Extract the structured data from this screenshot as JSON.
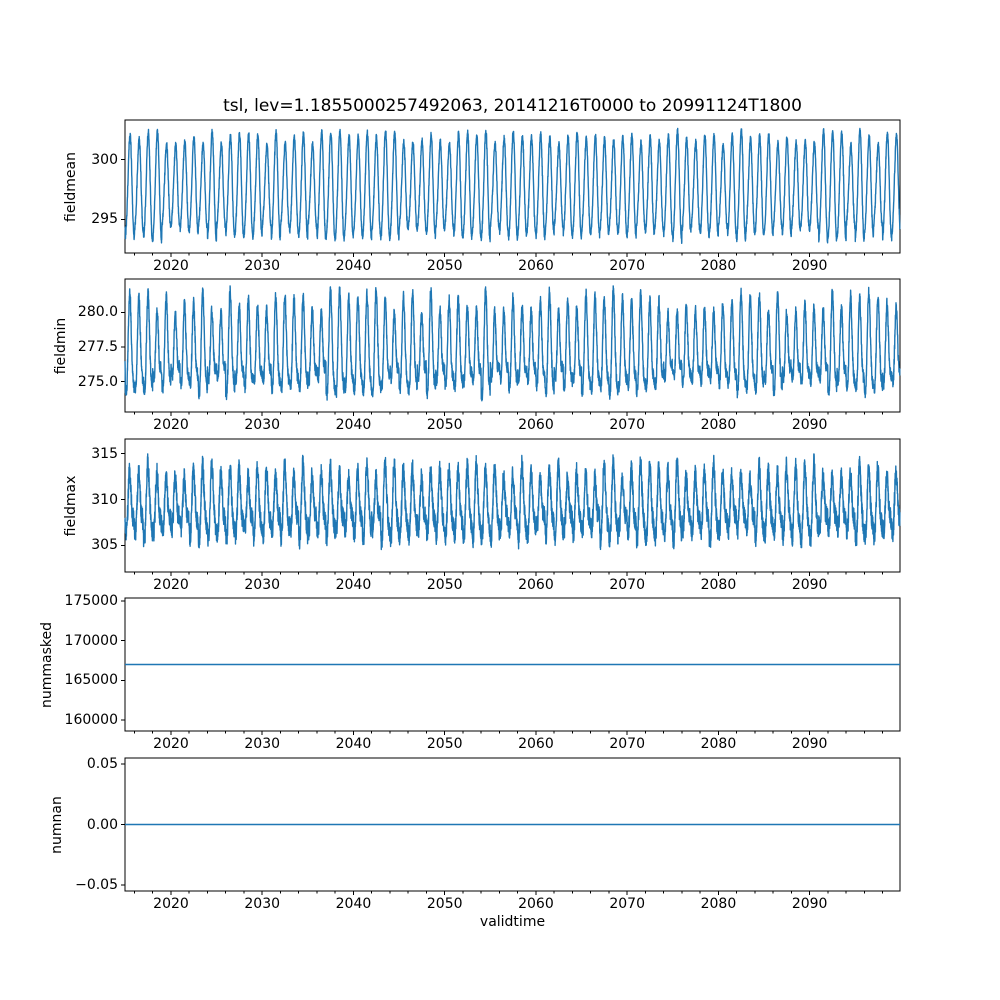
{
  "figure": {
    "title": "tsl, lev=1.1855000257492063, 20141216T0000 to 20991124T1800",
    "background": "#ffffff",
    "axis_color": "#000000",
    "line_color": "#1f77b4"
  },
  "chart_data": {
    "type": "line",
    "title": "tsl, lev=1.1855000257492063, 20141216T0000 to 20991124T1800",
    "x_axis": {
      "label": "validtime",
      "xlim": [
        2014.96,
        2099.9
      ],
      "major_ticks": [
        2020,
        2030,
        2040,
        2050,
        2060,
        2070,
        2080,
        2090
      ],
      "minor_tick_step": 2,
      "time_range_start": "20141216T0000",
      "time_range_end": "20991124T1800"
    },
    "grid": false,
    "legend": null,
    "panels": [
      {
        "ylabel": "fieldmean",
        "yticks": [
          295,
          300
        ],
        "ytick_labels": [
          "295",
          "300"
        ],
        "ylim": [
          292.2,
          303.3
        ],
        "series": {
          "kind": "seasonal",
          "period_years": 1,
          "samples_per_year": 73,
          "mean": 297.6,
          "amp": [
            3.3,
            4.6
          ],
          "h2": 0.35,
          "h2_phase": 0.8,
          "noise": 0.28,
          "value_range": [
            292.7,
            302.6
          ]
        }
      },
      {
        "ylabel": "fieldmin",
        "yticks": [
          275.0,
          277.5,
          280.0
        ],
        "ytick_labels": [
          "275.0",
          "277.5",
          "280.0"
        ],
        "ylim": [
          272.8,
          282.4
        ],
        "series": {
          "kind": "seasonal",
          "period_years": 1,
          "samples_per_year": 73,
          "mean": 277.1,
          "amp": [
            1.9,
            3.7
          ],
          "h2": 0.9,
          "h2_phase": 2.0,
          "noise": 0.45,
          "value_range": [
            272.9,
            281.9
          ]
        }
      },
      {
        "ylabel": "fieldmax",
        "yticks": [
          305,
          310,
          315
        ],
        "ytick_labels": [
          "305",
          "310",
          "315"
        ],
        "ylim": [
          302.1,
          316.6
        ],
        "series": {
          "kind": "seasonal",
          "period_years": 1,
          "samples_per_year": 73,
          "mean": 309.2,
          "amp": [
            2.2,
            4.0
          ],
          "h2": 1.0,
          "h2_phase": 2.4,
          "noise": 1.1,
          "value_range": [
            302.7,
            315.7
          ]
        }
      },
      {
        "ylabel": "nummasked",
        "yticks": [
          160000,
          165000,
          170000,
          175000
        ],
        "ytick_labels": [
          "160000",
          "165000",
          "170000",
          "175000"
        ],
        "ylim": [
          158650,
          175350
        ],
        "series": {
          "kind": "constant",
          "value": 167000
        }
      },
      {
        "ylabel": "numnan",
        "yticks": [
          -0.05,
          0.0,
          0.05
        ],
        "ytick_labels": [
          "−0.05",
          "0.00",
          "0.05"
        ],
        "ylim": [
          -0.055,
          0.055
        ],
        "series": {
          "kind": "constant",
          "value": 0
        }
      }
    ]
  }
}
